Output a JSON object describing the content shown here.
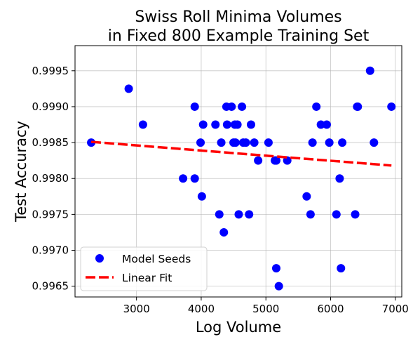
{
  "chart_data": {
    "type": "scatter",
    "title": [
      "Swiss Roll Minima Volumes",
      "in Fixed 800 Example Training Set"
    ],
    "xlabel": "Log Volume",
    "ylabel": "Test Accuracy",
    "xlim": [
      2050,
      7100
    ],
    "ylim": [
      0.99635,
      0.99985
    ],
    "xticks": [
      3000,
      4000,
      5000,
      6000,
      7000
    ],
    "yticks": [
      0.9965,
      0.997,
      0.9975,
      0.998,
      0.9985,
      0.999,
      0.9995
    ],
    "xtick_labels": [
      "3000",
      "4000",
      "5000",
      "6000",
      "7000"
    ],
    "ytick_labels": [
      "0.9965",
      "0.9970",
      "0.9975",
      "0.9980",
      "0.9985",
      "0.9990",
      "0.9995"
    ],
    "grid": true,
    "legend": {
      "position": "lower-left",
      "entries": [
        "Model Seeds",
        "Linear Fit"
      ]
    },
    "colors": {
      "points": "#0000ff",
      "fit": "#ff0000"
    },
    "series": [
      {
        "name": "Model Seeds",
        "kind": "scatter",
        "points": [
          [
            2300,
            0.9985
          ],
          [
            2880,
            0.99925
          ],
          [
            3100,
            0.99875
          ],
          [
            3720,
            0.998
          ],
          [
            3900,
            0.999
          ],
          [
            3900,
            0.998
          ],
          [
            3990,
            0.9985
          ],
          [
            4010,
            0.99775
          ],
          [
            4030,
            0.99875
          ],
          [
            4220,
            0.99875
          ],
          [
            4280,
            0.9975
          ],
          [
            4310,
            0.9985
          ],
          [
            4350,
            0.99725
          ],
          [
            4390,
            0.999
          ],
          [
            4400,
            0.99875
          ],
          [
            4470,
            0.999
          ],
          [
            4500,
            0.9985
          ],
          [
            4520,
            0.99875
          ],
          [
            4530,
            0.9985
          ],
          [
            4560,
            0.99875
          ],
          [
            4580,
            0.9975
          ],
          [
            4630,
            0.999
          ],
          [
            4650,
            0.9985
          ],
          [
            4690,
            0.9985
          ],
          [
            4740,
            0.9975
          ],
          [
            4770,
            0.99875
          ],
          [
            4820,
            0.9985
          ],
          [
            4880,
            0.99825
          ],
          [
            5040,
            0.9985
          ],
          [
            5140,
            0.99825
          ],
          [
            5160,
            0.99825
          ],
          [
            5160,
            0.99675
          ],
          [
            5200,
            0.9965
          ],
          [
            5330,
            0.99825
          ],
          [
            5630,
            0.99775
          ],
          [
            5690,
            0.9975
          ],
          [
            5720,
            0.9985
          ],
          [
            5780,
            0.999
          ],
          [
            5850,
            0.99875
          ],
          [
            5940,
            0.99875
          ],
          [
            5980,
            0.9985
          ],
          [
            6090,
            0.9975
          ],
          [
            6140,
            0.998
          ],
          [
            6160,
            0.99675
          ],
          [
            6180,
            0.9985
          ],
          [
            6380,
            0.9975
          ],
          [
            6410,
            0.999
          ],
          [
            6420,
            0.999
          ],
          [
            6610,
            0.9995
          ],
          [
            6670,
            0.9985
          ],
          [
            6940,
            0.999
          ]
        ]
      },
      {
        "name": "Linear Fit",
        "kind": "line",
        "points": [
          [
            2300,
            0.99851
          ],
          [
            6940,
            0.99818
          ]
        ]
      }
    ]
  }
}
